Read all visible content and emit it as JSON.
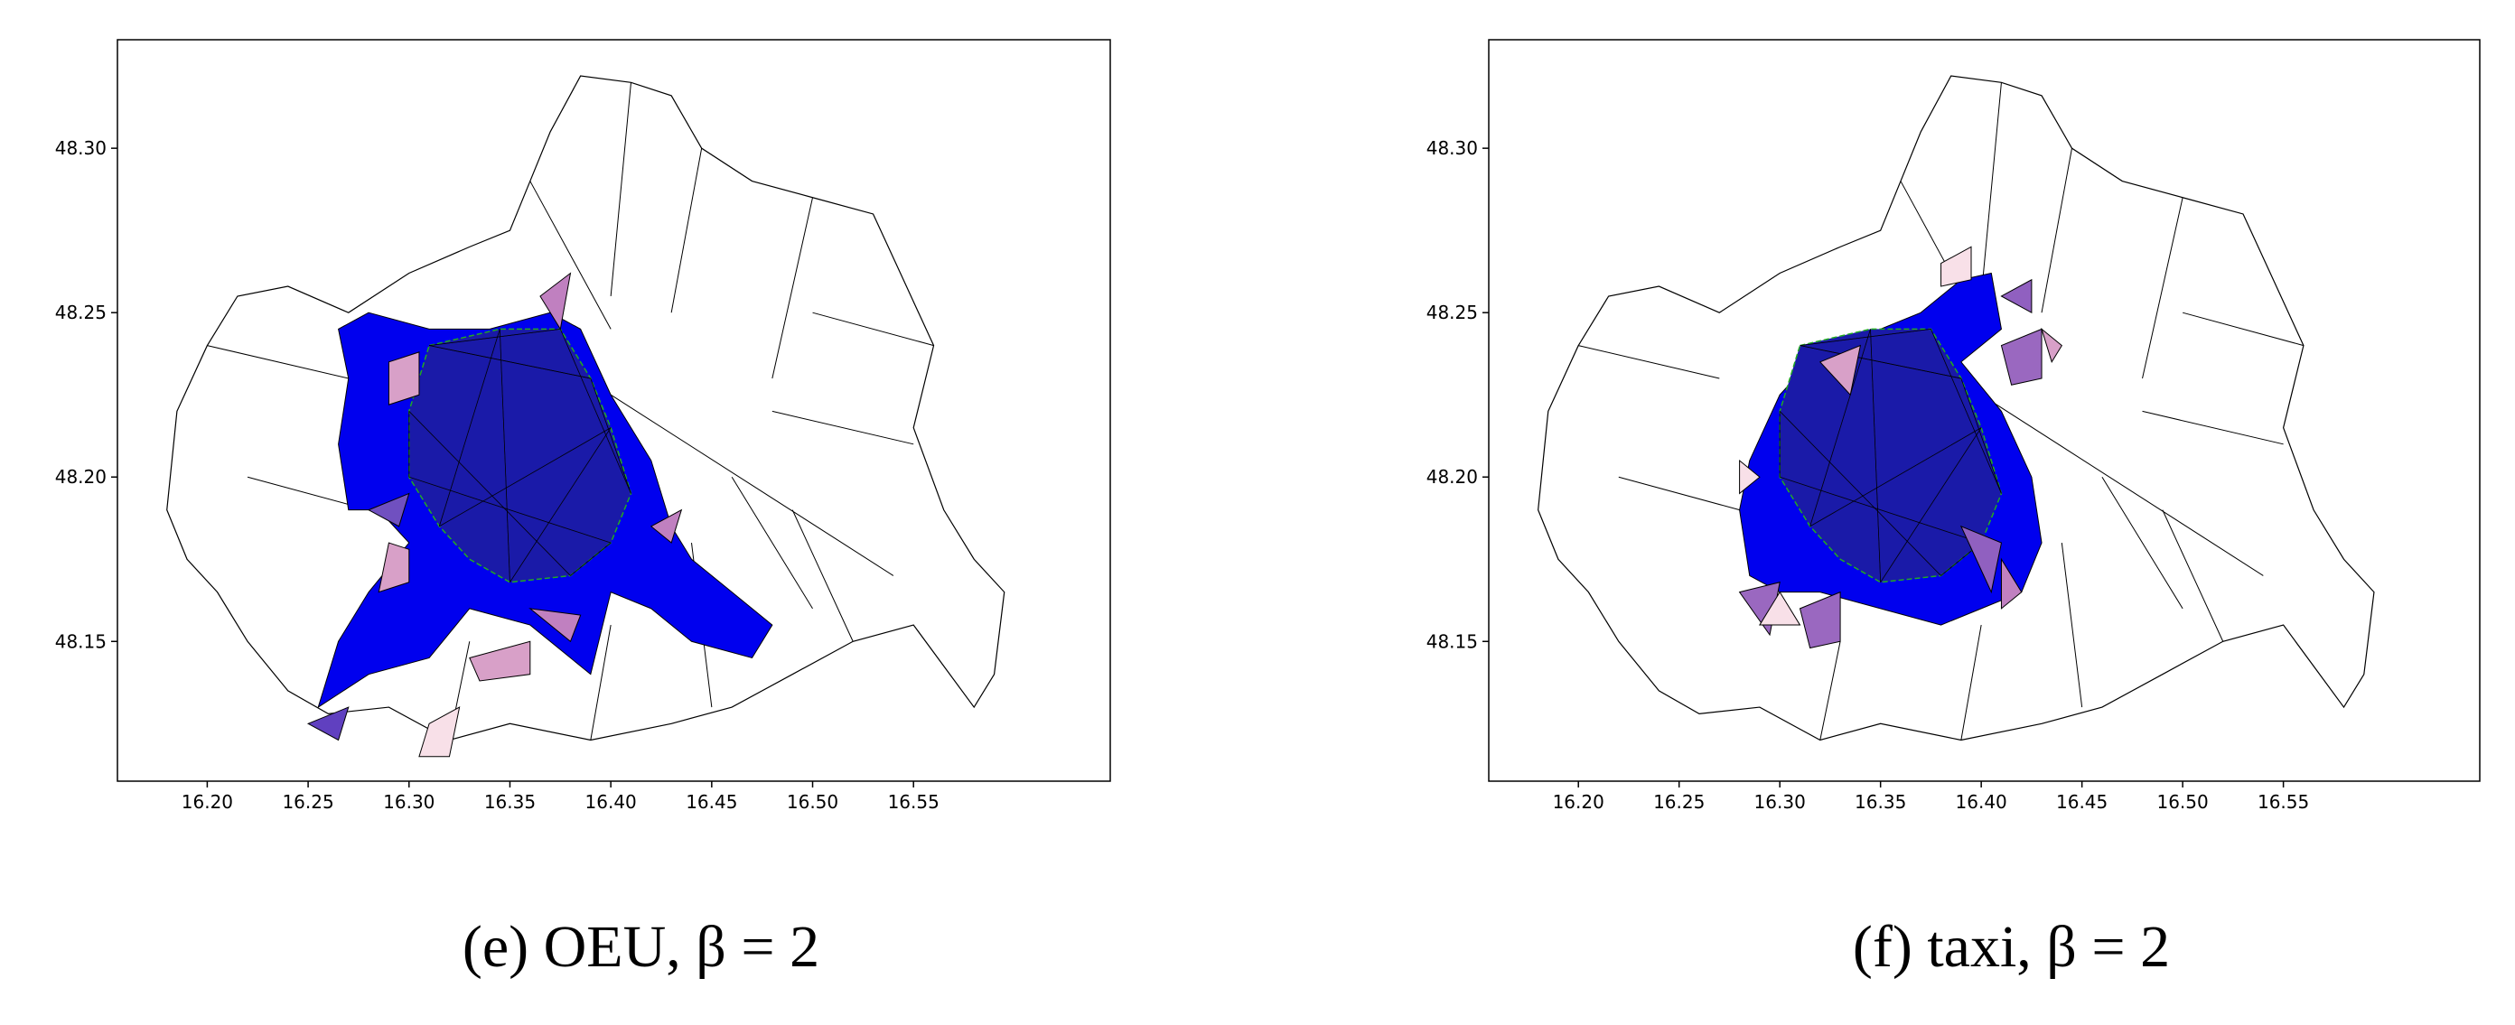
{
  "chart_data": [
    {
      "type": "map",
      "caption": "(e) OEU, β = 2",
      "variant": "oeu",
      "xlim": [
        16.1555,
        16.6475
      ],
      "ylim": [
        48.1075,
        48.333
      ],
      "xticks": [
        {
          "value": 16.2,
          "label": "16.20"
        },
        {
          "value": 16.25,
          "label": "16.25"
        },
        {
          "value": 16.3,
          "label": "16.30"
        },
        {
          "value": 16.35,
          "label": "16.35"
        },
        {
          "value": 16.4,
          "label": "16.40"
        },
        {
          "value": 16.45,
          "label": "16.45"
        },
        {
          "value": 16.5,
          "label": "16.50"
        },
        {
          "value": 16.55,
          "label": "16.55"
        }
      ],
      "yticks": [
        {
          "value": 48.15,
          "label": "48.15"
        },
        {
          "value": 48.2,
          "label": "48.20"
        },
        {
          "value": 48.25,
          "label": "48.25"
        },
        {
          "value": 48.3,
          "label": "48.30"
        }
      ]
    },
    {
      "type": "map",
      "caption": "(f) taxi, β = 2",
      "variant": "taxi",
      "xlim": [
        16.1555,
        16.6475
      ],
      "ylim": [
        48.1075,
        48.333
      ],
      "xticks": [
        {
          "value": 16.2,
          "label": "16.20"
        },
        {
          "value": 16.25,
          "label": "16.25"
        },
        {
          "value": 16.3,
          "label": "16.30"
        },
        {
          "value": 16.35,
          "label": "16.35"
        },
        {
          "value": 16.4,
          "label": "16.40"
        },
        {
          "value": 16.45,
          "label": "16.45"
        },
        {
          "value": 16.5,
          "label": "16.50"
        },
        {
          "value": 16.55,
          "label": "16.55"
        }
      ],
      "yticks": [
        {
          "value": 48.15,
          "label": "48.15"
        },
        {
          "value": 48.2,
          "label": "48.20"
        },
        {
          "value": 48.25,
          "label": "48.25"
        },
        {
          "value": 48.3,
          "label": "48.30"
        }
      ]
    }
  ]
}
